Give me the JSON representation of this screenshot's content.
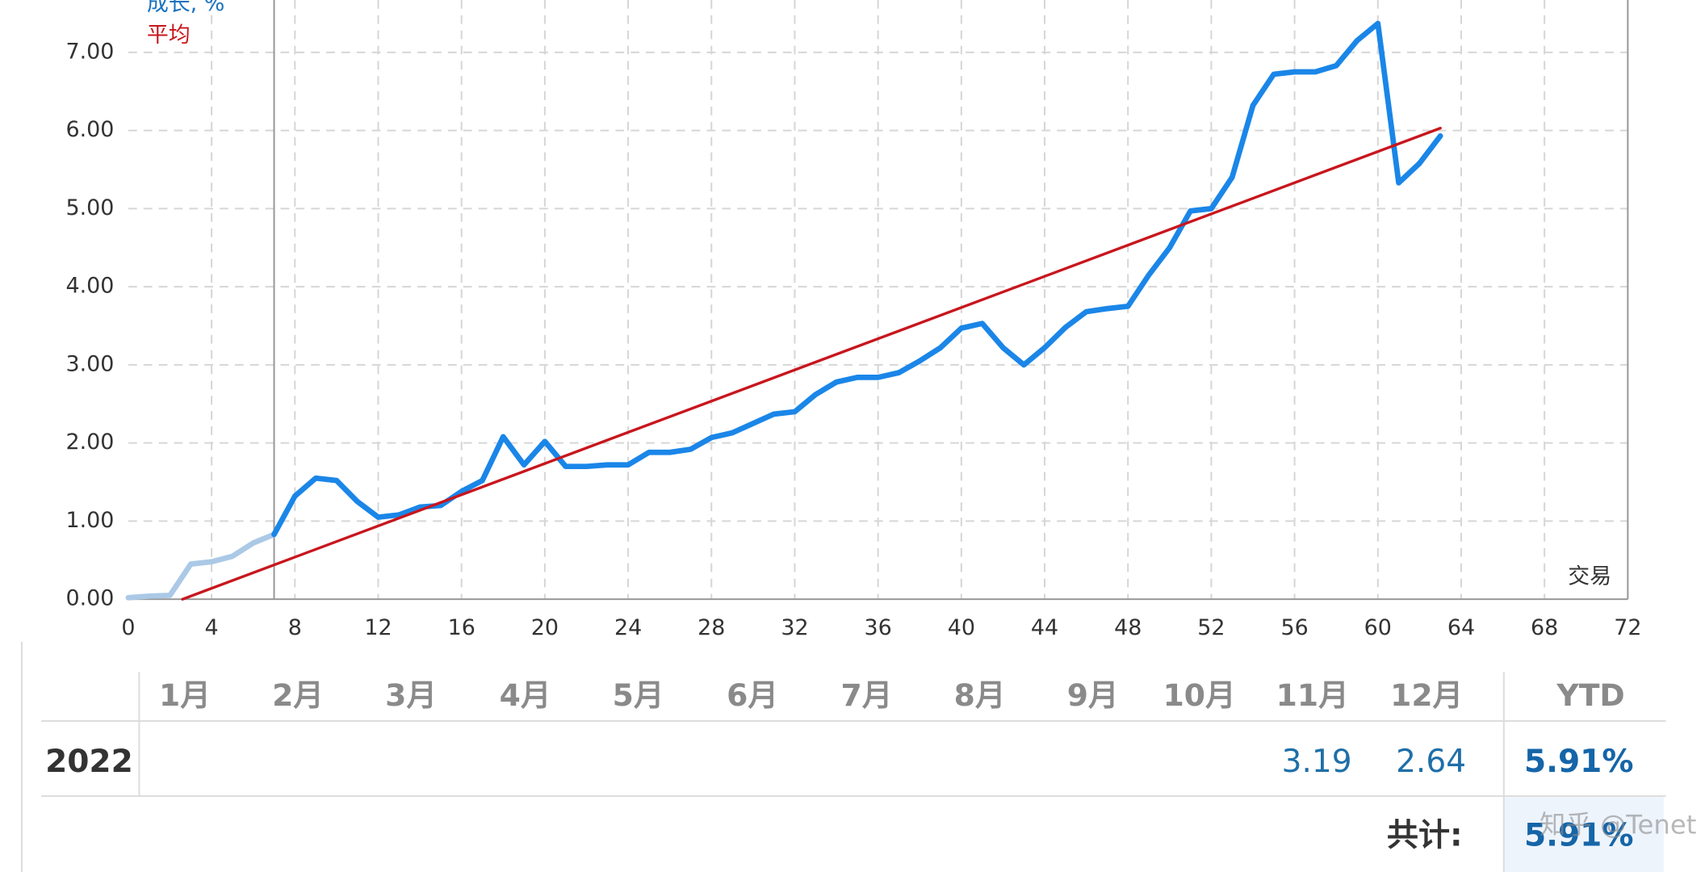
{
  "chart_data": {
    "type": "line",
    "x": [
      0,
      1,
      2,
      3,
      4,
      5,
      6,
      7,
      8,
      9,
      10,
      11,
      12,
      13,
      14,
      15,
      16,
      17,
      18,
      19,
      20,
      21,
      22,
      23,
      24,
      25,
      26,
      27,
      28,
      29,
      30,
      31,
      32,
      33,
      34,
      35,
      36,
      37,
      38,
      39,
      40,
      41,
      42,
      43,
      44,
      45,
      46,
      47,
      48,
      49,
      50,
      51,
      52,
      53,
      54,
      55,
      56,
      57,
      58,
      59,
      60,
      61,
      62,
      63
    ],
    "series": [
      {
        "name": "成长, %",
        "color": "#1a86e8",
        "faded_color": "#abc9e6",
        "faded_until": 7,
        "values": [
          0.02,
          0.04,
          0.05,
          0.45,
          0.48,
          0.55,
          0.72,
          0.83,
          1.32,
          1.55,
          1.52,
          1.25,
          1.05,
          1.08,
          1.18,
          1.2,
          1.38,
          1.52,
          2.08,
          1.72,
          2.02,
          1.7,
          1.7,
          1.72,
          1.72,
          1.88,
          1.88,
          1.92,
          2.07,
          2.13,
          2.25,
          2.37,
          2.4,
          2.62,
          2.78,
          2.84,
          2.84,
          2.9,
          3.05,
          3.22,
          3.47,
          3.53,
          3.22,
          3.0,
          3.22,
          3.48,
          3.68,
          3.72,
          3.75,
          4.15,
          4.5,
          4.97,
          5.0,
          5.4,
          6.32,
          6.72,
          6.75,
          6.75,
          6.83,
          7.15,
          7.37,
          5.33,
          5.58,
          5.93
        ]
      },
      {
        "name": "平均",
        "color": "#c8161d",
        "x": [
          2.6,
          63
        ],
        "values": [
          0,
          6.03
        ]
      }
    ],
    "x_label": "交易",
    "xlim": [
      0,
      72
    ],
    "xticks": [
      0,
      4,
      8,
      12,
      16,
      20,
      24,
      28,
      32,
      36,
      40,
      44,
      48,
      52,
      56,
      60,
      64,
      68,
      72
    ],
    "ylim": [
      0,
      7.67
    ],
    "yticks": [
      {
        "value": 0,
        "label": "0.00"
      },
      {
        "value": 1,
        "label": "1.00"
      },
      {
        "value": 2,
        "label": "2.00"
      },
      {
        "value": 3,
        "label": "3.00"
      },
      {
        "value": 4,
        "label": "4.00"
      },
      {
        "value": 5,
        "label": "5.00"
      },
      {
        "value": 6,
        "label": "6.00"
      },
      {
        "value": 7,
        "label": "7.00"
      }
    ],
    "grid": true
  },
  "table": {
    "columns": [
      "1月",
      "2月",
      "3月",
      "4月",
      "5月",
      "6月",
      "7月",
      "8月",
      "9月",
      "10月",
      "11月",
      "12月"
    ],
    "ytd_header": "YTD",
    "rows": [
      {
        "year": "2022",
        "values": [
          null,
          null,
          null,
          null,
          null,
          null,
          null,
          null,
          null,
          null,
          3.19,
          2.64
        ],
        "ytd": "5.91%"
      }
    ],
    "total_label": "共计:",
    "total": "5.91%"
  },
  "watermark": "知乎 @Tenet"
}
